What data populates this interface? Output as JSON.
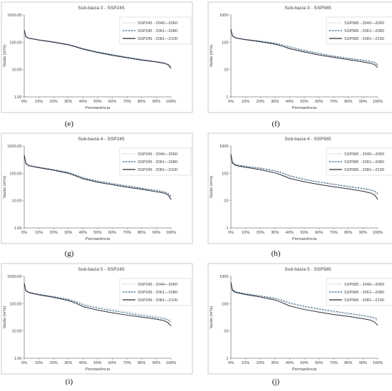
{
  "chart_data": [
    {
      "type": "line",
      "panel_label": "(e)",
      "title": "Sub-bacia 3 - SSP245",
      "xlabel": "Permanência",
      "ylabel": "Vazão (m³/s)",
      "yscale": "log",
      "ylim": [
        1,
        1000
      ],
      "yticks": [
        "1.00",
        "10.00",
        "100.00",
        "1000.00"
      ],
      "xticks": [
        "0%",
        "10%",
        "20%",
        "30%",
        "40%",
        "50%",
        "60%",
        "70%",
        "80%",
        "90%",
        "100%"
      ],
      "legend_position": "top-right",
      "grid": false,
      "x": [
        0,
        1,
        3,
        5,
        10,
        20,
        30,
        35,
        40,
        50,
        60,
        70,
        80,
        90,
        95,
        98,
        100
      ],
      "series": [
        {
          "name": "SSP245 - 2040—2060",
          "values": [
            300,
            170,
            145,
            140,
            125,
            105,
            85,
            72,
            60,
            45,
            36,
            29,
            24,
            20,
            18,
            16,
            13
          ]
        },
        {
          "name": "SSP245 - 2061—2080",
          "values": [
            290,
            165,
            142,
            137,
            122,
            103,
            83,
            70,
            58,
            44,
            35,
            28,
            23,
            19.5,
            17.5,
            15.5,
            12
          ]
        },
        {
          "name": "SSP245 - 2081—2100",
          "values": [
            280,
            160,
            140,
            135,
            120,
            100,
            80,
            68,
            56,
            42,
            33,
            27,
            22,
            19,
            17,
            15,
            11
          ]
        }
      ]
    },
    {
      "type": "line",
      "panel_label": "(f)",
      "title": "Sub-bacia 3 - SSP585",
      "xlabel": "Permanência",
      "ylabel": "Vazão (m³/s)",
      "yscale": "log",
      "ylim": [
        1,
        1000
      ],
      "yticks": [
        "1",
        "10",
        "100",
        "1000"
      ],
      "xticks": [
        "0%",
        "10%",
        "20%",
        "30%",
        "40%",
        "50%",
        "60%",
        "70%",
        "80%",
        "90%",
        "100%"
      ],
      "legend_position": "top-right",
      "grid": false,
      "x": [
        0,
        1,
        3,
        5,
        10,
        20,
        30,
        35,
        40,
        50,
        60,
        70,
        80,
        90,
        95,
        98,
        100
      ],
      "series": [
        {
          "name": "SSP585 - 2040—2060",
          "values": [
            320,
            180,
            150,
            142,
            128,
            107,
            88,
            75,
            62,
            47,
            37,
            30,
            25,
            21,
            19,
            17,
            14
          ]
        },
        {
          "name": "SSP585 - 2061—2080",
          "values": [
            310,
            175,
            148,
            140,
            127,
            110,
            92,
            80,
            68,
            50,
            39,
            31,
            26,
            22,
            20,
            18,
            15
          ]
        },
        {
          "name": "SSP585 - 2081—2100",
          "values": [
            300,
            170,
            145,
            138,
            124,
            104,
            85,
            72,
            58,
            44,
            34,
            28,
            23,
            19,
            17,
            15,
            12
          ]
        }
      ]
    },
    {
      "type": "line",
      "panel_label": "(g)",
      "title": "Sub-bacia 4 - SSP245",
      "xlabel": "Permanência",
      "ylabel": "Vazão (m³/s)",
      "yscale": "log",
      "ylim": [
        1,
        1000
      ],
      "yticks": [
        "1.00",
        "10.00",
        "100.00",
        "1000.00"
      ],
      "xticks": [
        "0%",
        "10%",
        "20%",
        "30%",
        "40%",
        "50%",
        "60%",
        "70%",
        "80%",
        "90%",
        "100%"
      ],
      "legend_position": "top-right",
      "grid": false,
      "x": [
        0,
        1,
        3,
        5,
        10,
        20,
        30,
        35,
        40,
        50,
        60,
        70,
        80,
        90,
        95,
        98,
        100
      ],
      "series": [
        {
          "name": "SSP245 - 2040—2060",
          "values": [
            500,
            250,
            200,
            190,
            170,
            140,
            110,
            90,
            72,
            55,
            44,
            36,
            30,
            25,
            22,
            19,
            15
          ]
        },
        {
          "name": "SSP245 - 2061—2080",
          "values": [
            480,
            240,
            195,
            185,
            165,
            135,
            106,
            86,
            68,
            51,
            41,
            34,
            28,
            23,
            21,
            18,
            14
          ]
        },
        {
          "name": "SSP245 - 2081—2100",
          "values": [
            450,
            230,
            190,
            180,
            160,
            130,
            100,
            80,
            63,
            47,
            38,
            31,
            26,
            21,
            19,
            16,
            11
          ]
        }
      ]
    },
    {
      "type": "line",
      "panel_label": "(h)",
      "title": "Sub-bacia 4 - SSP585",
      "xlabel": "Permanência",
      "ylabel": "Vazão (m³/s)",
      "yscale": "log",
      "ylim": [
        1,
        1000
      ],
      "yticks": [
        "1",
        "10",
        "100",
        "1000"
      ],
      "xticks": [
        "0%",
        "10%",
        "20%",
        "30%",
        "40%",
        "50%",
        "60%",
        "70%",
        "80%",
        "90%",
        "100%"
      ],
      "legend_position": "top-right",
      "grid": false,
      "x": [
        0,
        1,
        3,
        5,
        10,
        20,
        30,
        35,
        40,
        50,
        60,
        70,
        80,
        90,
        95,
        98,
        100
      ],
      "series": [
        {
          "name": "SSP585 - 2040—2060",
          "values": [
            520,
            260,
            210,
            198,
            178,
            148,
            117,
            96,
            76,
            58,
            46,
            38,
            31,
            26,
            23,
            20,
            16
          ]
        },
        {
          "name": "SSP585 - 2061—2080",
          "values": [
            510,
            255,
            208,
            196,
            180,
            155,
            125,
            104,
            82,
            60,
            48,
            40,
            33,
            28,
            25,
            22,
            18
          ]
        },
        {
          "name": "SSP585 - 2081—2100",
          "values": [
            470,
            240,
            198,
            186,
            166,
            136,
            104,
            84,
            65,
            49,
            39,
            32,
            27,
            22,
            19,
            16,
            11
          ]
        }
      ]
    },
    {
      "type": "line",
      "panel_label": "(i)",
      "title": "Sub-bacia 5 - SSP245",
      "xlabel": "Permanência",
      "ylabel": "Vazão (m³/s)",
      "yscale": "log",
      "ylim": [
        1,
        1000
      ],
      "yticks": [
        "1.00",
        "10.00",
        "100.00",
        "1000.00"
      ],
      "xticks": [
        "0%",
        "10%",
        "20%",
        "30%",
        "40%",
        "50%",
        "60%",
        "70%",
        "80%",
        "90%",
        "100%"
      ],
      "legend_position": "top-right",
      "grid": false,
      "x": [
        0,
        1,
        3,
        5,
        10,
        20,
        30,
        35,
        40,
        50,
        60,
        70,
        80,
        90,
        95,
        98,
        100
      ],
      "series": [
        {
          "name": "SSP245 - 2040—2060",
          "values": [
            600,
            320,
            270,
            255,
            225,
            185,
            150,
            125,
            100,
            77,
            62,
            51,
            42,
            35,
            31,
            28,
            25
          ]
        },
        {
          "name": "SSP245 - 2061—2080",
          "values": [
            580,
            310,
            262,
            248,
            218,
            178,
            142,
            116,
            90,
            68,
            55,
            45,
            37,
            31,
            28,
            25,
            21
          ]
        },
        {
          "name": "SSP245 - 2081—2100",
          "values": [
            550,
            300,
            255,
            240,
            210,
            170,
            130,
            104,
            78,
            58,
            46,
            38,
            32,
            27,
            24,
            20,
            15
          ]
        }
      ]
    },
    {
      "type": "line",
      "panel_label": "(j)",
      "title": "Sub-bacia 5 - SSP585",
      "xlabel": "Permanência",
      "ylabel": "Vazão (m³/s)",
      "yscale": "log",
      "ylim": [
        1,
        1000
      ],
      "yticks": [
        "1",
        "10",
        "100",
        "1000"
      ],
      "xticks": [
        "0%",
        "10%",
        "20%",
        "30%",
        "40%",
        "50%",
        "60%",
        "70%",
        "80%",
        "90%",
        "100%"
      ],
      "legend_position": "top-right",
      "grid": false,
      "x": [
        0,
        1,
        3,
        5,
        10,
        20,
        30,
        35,
        40,
        50,
        60,
        70,
        80,
        90,
        95,
        98,
        100
      ],
      "series": [
        {
          "name": "SSP585 - 2040—2060",
          "values": [
            620,
            330,
            278,
            262,
            232,
            190,
            150,
            122,
            96,
            72,
            58,
            48,
            40,
            33,
            30,
            27,
            23
          ]
        },
        {
          "name": "SSP585 - 2061—2080",
          "values": [
            610,
            325,
            275,
            260,
            230,
            192,
            158,
            132,
            106,
            80,
            64,
            53,
            44,
            37,
            33,
            30,
            26
          ]
        },
        {
          "name": "SSP585 - 2081—2100",
          "values": [
            570,
            305,
            260,
            245,
            215,
            175,
            136,
            108,
            82,
            61,
            49,
            40,
            34,
            28,
            25,
            21,
            16
          ]
        }
      ]
    }
  ],
  "style": {
    "series_colors": [
      "#c4c4cc",
      "#2e5f7a",
      "#2b2b38"
    ],
    "series_dashes": [
      "2,1.5",
      "2.5,1.5",
      ""
    ],
    "series_widths": [
      0.9,
      1.0,
      1.0
    ],
    "axis_color": "#7f7f7f",
    "text_color": "#404040",
    "border_color": "#bfbfbf"
  }
}
